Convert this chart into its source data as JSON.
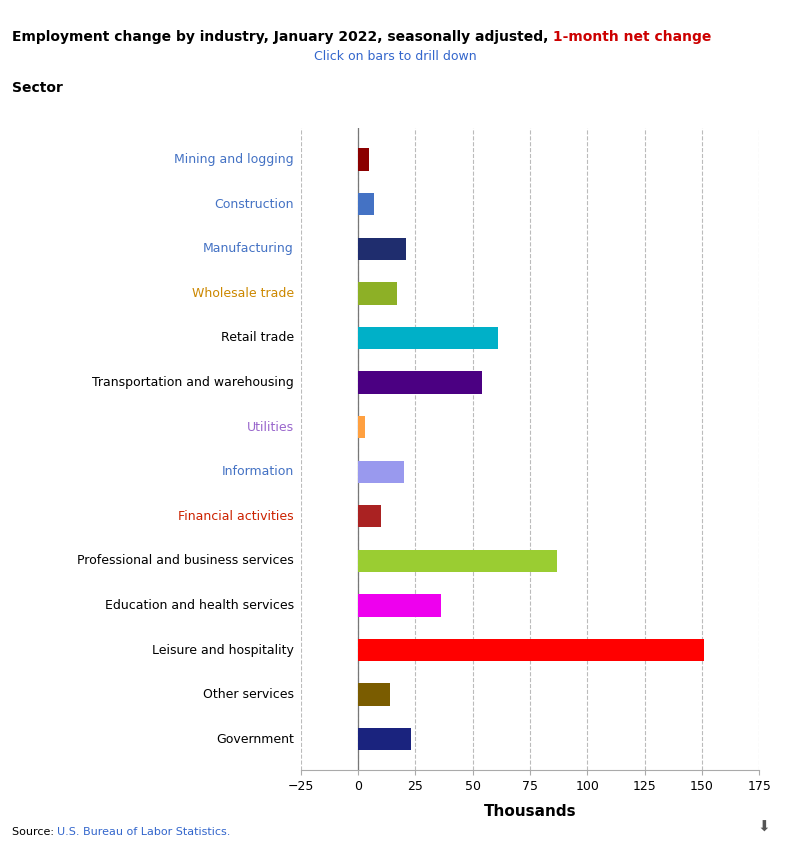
{
  "title_black": "Employment change by industry, January 2022, seasonally adjusted,",
  "title_red": " 1-month net change",
  "subtitle": "Click on bars to drill down",
  "sector_label": "Sector",
  "xlabel": "Thousands",
  "source_prefix": "Source: ",
  "source_link": "U.S. Bureau of Labor Statistics.",
  "categories": [
    "Mining and logging",
    "Construction",
    "Manufacturing",
    "Wholesale trade",
    "Retail trade",
    "Transportation and warehousing",
    "Utilities",
    "Information",
    "Financial activities",
    "Professional and business services",
    "Education and health services",
    "Leisure and hospitality",
    "Other services",
    "Government"
  ],
  "values": [
    5,
    7,
    21,
    17,
    61,
    54,
    3,
    20,
    10,
    87,
    36,
    151,
    14,
    23
  ],
  "colors": [
    "#8b0000",
    "#4472c4",
    "#1f2d6e",
    "#8db026",
    "#00b0c8",
    "#4b0082",
    "#ffa040",
    "#9999ee",
    "#aa2222",
    "#9acd32",
    "#ee00ee",
    "#ff0000",
    "#7a5c00",
    "#1a237e"
  ],
  "xlim": [
    -25,
    175
  ],
  "xticks": [
    -25,
    0,
    25,
    50,
    75,
    100,
    125,
    150,
    175
  ],
  "label_colors": {
    "Mining and logging": "#4472c4",
    "Construction": "#4472c4",
    "Manufacturing": "#4472c4",
    "Wholesale trade": "#cc8800",
    "Retail trade": "#000000",
    "Transportation and warehousing": "#000000",
    "Utilities": "#9966cc",
    "Information": "#4472c4",
    "Financial activities": "#cc2200",
    "Professional and business services": "#000000",
    "Education and health services": "#000000",
    "Leisure and hospitality": "#000000",
    "Other services": "#000000",
    "Government": "#000000"
  },
  "bg_color": "#ffffff",
  "grid_color": "#bbbbbb",
  "bar_height": 0.5
}
